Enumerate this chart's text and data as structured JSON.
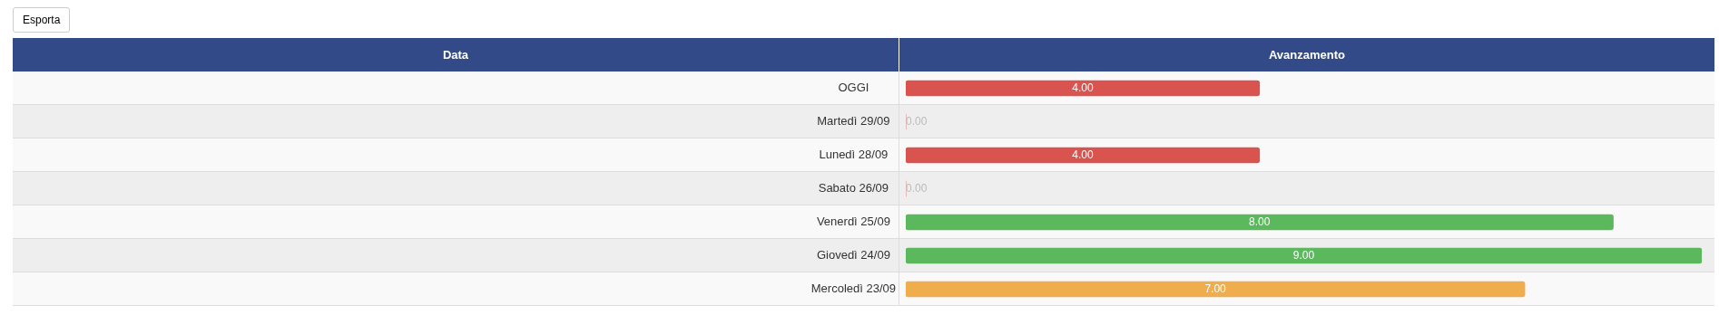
{
  "chart_data": {
    "type": "bar",
    "orientation": "horizontal",
    "xlabel": "Avanzamento",
    "annotations": [
      "Esporta",
      "Data"
    ],
    "categories": [
      "OGGI",
      "Martedì 29/09",
      "Lunedì 28/09",
      "Sabato 26/09",
      "Venerdì 25/09",
      "Giovedì 24/09",
      "Mercoledì 23/09"
    ],
    "series": [
      {
        "colors": [
          "#d9534f",
          "#d9534f",
          "#d9534f",
          "#d9534f",
          "#5cb85c",
          "#5cb85c",
          "#f0ad4e"
        ],
        "values": [
          4,
          0,
          4,
          0,
          8,
          9,
          7
        ],
        "value_labels": [
          "4.00",
          "0.00",
          "4.00",
          "0.00",
          "8.00",
          "9.00",
          "7.00"
        ]
      }
    ],
    "tick_labels": "y"
  }
}
